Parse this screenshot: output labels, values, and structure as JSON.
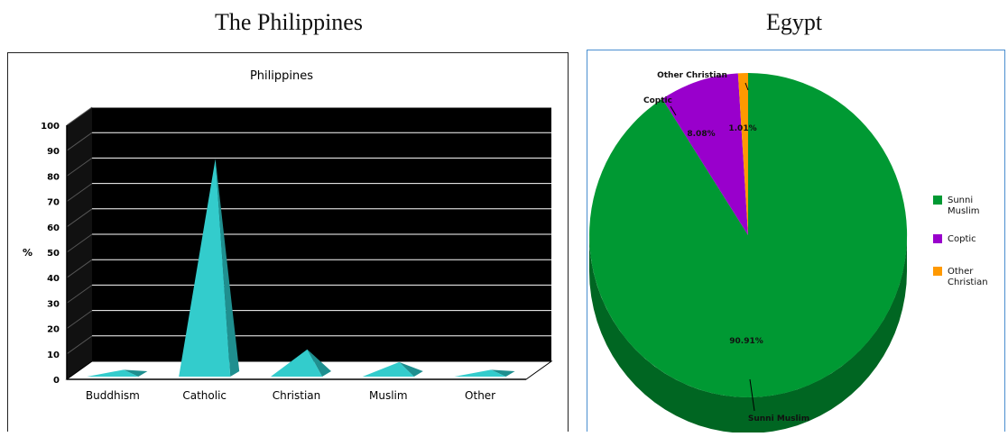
{
  "headings": {
    "left": "The Philippines",
    "right": "Egypt"
  },
  "chart_data": [
    {
      "type": "bar",
      "style": "3d-pyramid",
      "title": "Philippines",
      "ylabel": "%",
      "xlabel": "",
      "categories": [
        "Buddhism",
        "Catholic",
        "Christian",
        "Muslim",
        "Other"
      ],
      "values": [
        2,
        85,
        10,
        5,
        2
      ],
      "ylim": [
        0,
        100
      ],
      "yticks": [
        0,
        10,
        20,
        30,
        40,
        50,
        60,
        70,
        80,
        90,
        100
      ],
      "grid": true,
      "legend": "none",
      "colors": {
        "bar": "#33cccc",
        "bar_dark": "#1f8f8f",
        "plot_bg": "#000000",
        "grid": "#ffffff"
      }
    },
    {
      "type": "pie",
      "style": "3d",
      "title": "",
      "slices": [
        {
          "label": "Sunni Muslim",
          "legend_label": "Sunni Muslim",
          "value": 90.91,
          "value_label": "90.91%",
          "color": "#009933",
          "dark": "#006622"
        },
        {
          "label": "Coptic",
          "legend_label": "Coptic",
          "value": 8.08,
          "value_label": "8.08%",
          "color": "#9900cc",
          "dark": "#660088"
        },
        {
          "label": "Other Christian",
          "legend_label": "Other Christian",
          "value": 1.01,
          "value_label": "1.01%",
          "color": "#ff9900",
          "dark": "#cc7700"
        }
      ],
      "legend": "right"
    }
  ]
}
